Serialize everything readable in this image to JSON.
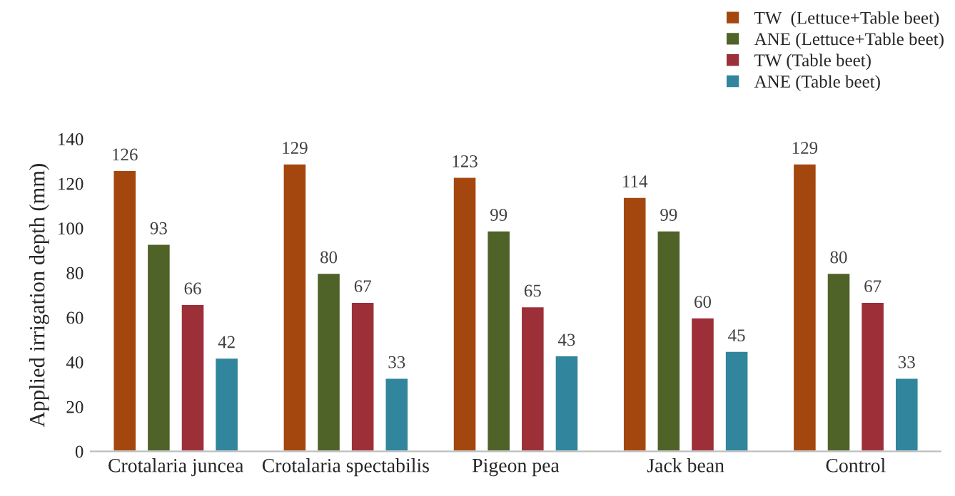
{
  "chart_data": {
    "type": "bar",
    "ylabel": "Applied irrigation depth (mm)",
    "categories": [
      "Crotalaria juncea",
      "Crotalaria spectabilis",
      "Pigeon pea",
      "Jack bean",
      "Control"
    ],
    "series": [
      {
        "name": "TW  (Lettuce+Table beet)",
        "color": "#a4470f",
        "values": [
          126,
          129,
          123,
          114,
          129
        ]
      },
      {
        "name": "ANE (Lettuce+Table beet)",
        "color": "#4f6228",
        "values": [
          93,
          80,
          99,
          99,
          80
        ]
      },
      {
        "name": "TW (Table beet)",
        "color": "#9c2f38",
        "values": [
          66,
          67,
          65,
          60,
          67
        ]
      },
      {
        "name": "ANE (Table beet)",
        "color": "#31859c",
        "values": [
          42,
          33,
          43,
          45,
          33
        ]
      }
    ],
    "ylim": [
      0,
      140
    ],
    "yticks": [
      0,
      20,
      40,
      60,
      80,
      100,
      120,
      140
    ],
    "data_labels": true,
    "grid": false,
    "legend": "top right"
  }
}
